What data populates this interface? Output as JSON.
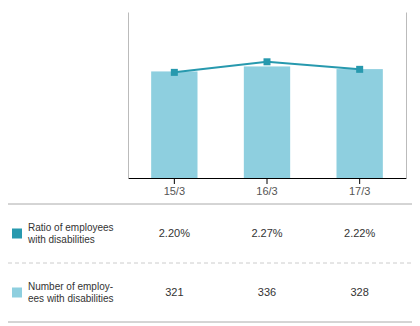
{
  "chart_data": {
    "type": "bar",
    "categories": [
      "15/3",
      "16/3",
      "17/3"
    ],
    "series": [
      {
        "name": "Ratio of employees\nwith disabilities",
        "type": "line",
        "axis": "y2",
        "color": "#2799ae",
        "marker": "square",
        "values": [
          2.2,
          2.27,
          2.22
        ],
        "value_labels": [
          "2.20%",
          "2.27%",
          "2.22%"
        ]
      },
      {
        "name": "Number of employ-\nees with disabilities",
        "type": "bar",
        "color": "#8ecfdf",
        "values": [
          321,
          336,
          328
        ]
      }
    ],
    "ylim": [
      0,
      500
    ],
    "y2lim": [
      1.5,
      2.6
    ],
    "tick_labels": "x",
    "grid": false,
    "legend": "bottom",
    "data_labels": true
  }
}
